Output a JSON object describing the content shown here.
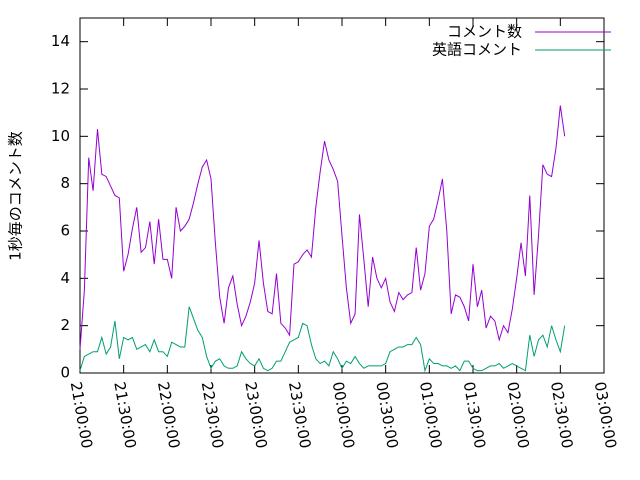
{
  "chart_data": {
    "type": "line",
    "ylabel": "1秒毎のコメント数",
    "x": [
      "21:00:00",
      "21:03:00",
      "21:06:00",
      "21:09:00",
      "21:12:00",
      "21:15:00",
      "21:18:00",
      "21:21:00",
      "21:24:00",
      "21:27:00",
      "21:30:00",
      "21:33:00",
      "21:36:00",
      "21:39:00",
      "21:42:00",
      "21:45:00",
      "21:48:00",
      "21:51:00",
      "21:54:00",
      "21:57:00",
      "22:00:00",
      "22:03:00",
      "22:06:00",
      "22:09:00",
      "22:12:00",
      "22:15:00",
      "22:18:00",
      "22:21:00",
      "22:24:00",
      "22:27:00",
      "22:30:00",
      "22:33:00",
      "22:36:00",
      "22:39:00",
      "22:42:00",
      "22:45:00",
      "22:48:00",
      "22:51:00",
      "22:54:00",
      "22:57:00",
      "23:00:00",
      "23:03:00",
      "23:06:00",
      "23:09:00",
      "23:12:00",
      "23:15:00",
      "23:18:00",
      "23:21:00",
      "23:24:00",
      "23:27:00",
      "23:30:00",
      "23:33:00",
      "23:36:00",
      "23:39:00",
      "23:42:00",
      "23:45:00",
      "23:48:00",
      "23:51:00",
      "23:54:00",
      "23:57:00",
      "00:00:00",
      "00:03:00",
      "00:06:00",
      "00:09:00",
      "00:12:00",
      "00:15:00",
      "00:18:00",
      "00:21:00",
      "00:24:00",
      "00:27:00",
      "00:30:00",
      "00:33:00",
      "00:36:00",
      "00:39:00",
      "00:42:00",
      "00:45:00",
      "00:48:00",
      "00:51:00",
      "00:54:00",
      "00:57:00",
      "01:00:00",
      "01:03:00",
      "01:06:00",
      "01:09:00",
      "01:12:00",
      "01:15:00",
      "01:18:00",
      "01:21:00",
      "01:24:00",
      "01:27:00",
      "01:30:00",
      "01:33:00",
      "01:36:00",
      "01:39:00",
      "01:42:00",
      "01:45:00",
      "01:48:00",
      "01:51:00",
      "01:54:00",
      "01:57:00",
      "02:00:00",
      "02:03:00",
      "02:06:00",
      "02:09:00",
      "02:12:00",
      "02:15:00",
      "02:18:00",
      "02:21:00",
      "02:24:00",
      "02:27:00",
      "02:30:00",
      "02:33:00"
    ],
    "series": [
      {
        "name": "コメント数",
        "color": "#9400d3",
        "values": [
          1.0,
          3.5,
          9.1,
          7.7,
          10.3,
          8.4,
          8.3,
          7.9,
          7.5,
          7.4,
          4.3,
          5.0,
          6.1,
          7.0,
          5.1,
          5.3,
          6.4,
          4.6,
          6.5,
          4.8,
          4.8,
          4.0,
          7.0,
          6.0,
          6.2,
          6.5,
          7.2,
          8.0,
          8.7,
          9.0,
          8.2,
          5.5,
          3.2,
          2.1,
          3.6,
          4.1,
          2.9,
          2.0,
          2.4,
          3.0,
          3.8,
          5.6,
          3.8,
          2.6,
          2.5,
          4.2,
          2.1,
          1.9,
          1.6,
          4.6,
          4.7,
          5.0,
          5.2,
          4.9,
          7.0,
          8.5,
          9.8,
          9.0,
          8.6,
          8.1,
          5.8,
          3.6,
          2.1,
          2.5,
          6.7,
          4.8,
          2.8,
          4.9,
          4.0,
          3.6,
          4.0,
          3.0,
          2.6,
          3.4,
          3.1,
          3.3,
          3.4,
          5.3,
          3.5,
          4.2,
          6.2,
          6.5,
          7.3,
          8.2,
          6.0,
          2.5,
          3.3,
          3.2,
          2.8,
          2.2,
          4.6,
          2.8,
          3.5,
          1.9,
          2.4,
          2.2,
          1.4,
          2.0,
          1.7,
          2.7,
          4.0,
          5.5,
          4.1,
          7.5,
          3.3,
          5.8,
          8.8,
          8.4,
          8.3,
          9.5,
          11.3,
          10.0
        ]
      },
      {
        "name": "英語コメント",
        "color": "#009e73",
        "values": [
          0.1,
          0.7,
          0.8,
          0.9,
          0.9,
          1.5,
          0.8,
          1.1,
          2.2,
          0.6,
          1.5,
          1.4,
          1.5,
          1.0,
          1.1,
          1.2,
          0.9,
          1.4,
          0.9,
          0.9,
          0.7,
          1.3,
          1.2,
          1.1,
          1.1,
          2.8,
          2.3,
          1.8,
          1.5,
          0.7,
          0.2,
          0.5,
          0.6,
          0.3,
          0.2,
          0.2,
          0.3,
          0.9,
          0.6,
          0.4,
          0.3,
          0.6,
          0.2,
          0.1,
          0.2,
          0.5,
          0.5,
          0.9,
          1.3,
          1.4,
          1.5,
          2.1,
          2.0,
          1.2,
          0.6,
          0.4,
          0.5,
          0.3,
          0.9,
          0.6,
          0.2,
          0.5,
          0.4,
          0.7,
          0.4,
          0.2,
          0.3,
          0.3,
          0.3,
          0.3,
          0.4,
          0.9,
          1.0,
          1.1,
          1.1,
          1.2,
          1.2,
          1.5,
          1.2,
          0.1,
          0.6,
          0.4,
          0.4,
          0.3,
          0.3,
          0.2,
          0.3,
          0.1,
          0.5,
          0.5,
          0.2,
          0.1,
          0.1,
          0.2,
          0.3,
          0.3,
          0.4,
          0.2,
          0.3,
          0.4,
          0.3,
          0.2,
          0.1,
          1.6,
          0.7,
          1.4,
          1.6,
          1.1,
          2.0,
          1.4,
          0.9,
          2.0
        ]
      }
    ],
    "xlim": [
      "21:00:00",
      "03:00:00"
    ],
    "xticks": [
      "21:00:00",
      "21:30:00",
      "22:00:00",
      "22:30:00",
      "23:00:00",
      "23:30:00",
      "00:00:00",
      "00:30:00",
      "01:00:00",
      "01:30:00",
      "02:00:00",
      "02:30:00",
      "03:00:00"
    ],
    "ylim": [
      0,
      15
    ],
    "yticks": [
      0,
      2,
      4,
      6,
      8,
      10,
      12,
      14
    ],
    "legend": "top-right"
  }
}
